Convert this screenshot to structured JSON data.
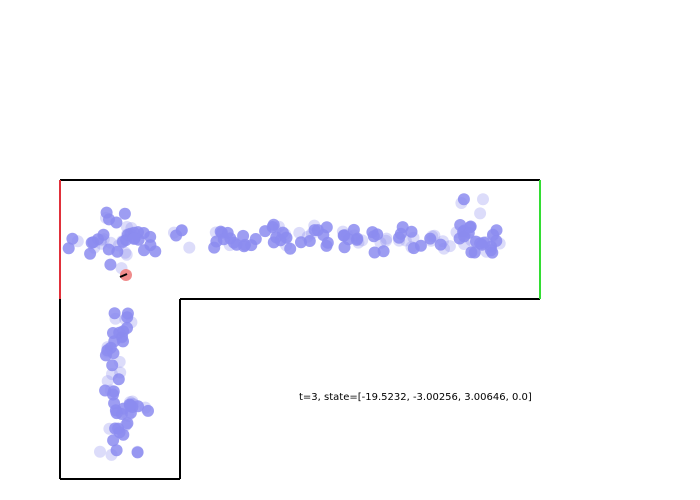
{
  "status": {
    "label": "t=3, state=[-19.5232, -3.00256, 3.00646, 0.0]"
  },
  "colors": {
    "background": "#ffffff",
    "wall": "#000000",
    "start_edge": "#e0303a",
    "goal_edge": "#33dd33",
    "particle": "#8c8cf0",
    "agent": "#f08c8c",
    "heading": "#000000"
  }
}
